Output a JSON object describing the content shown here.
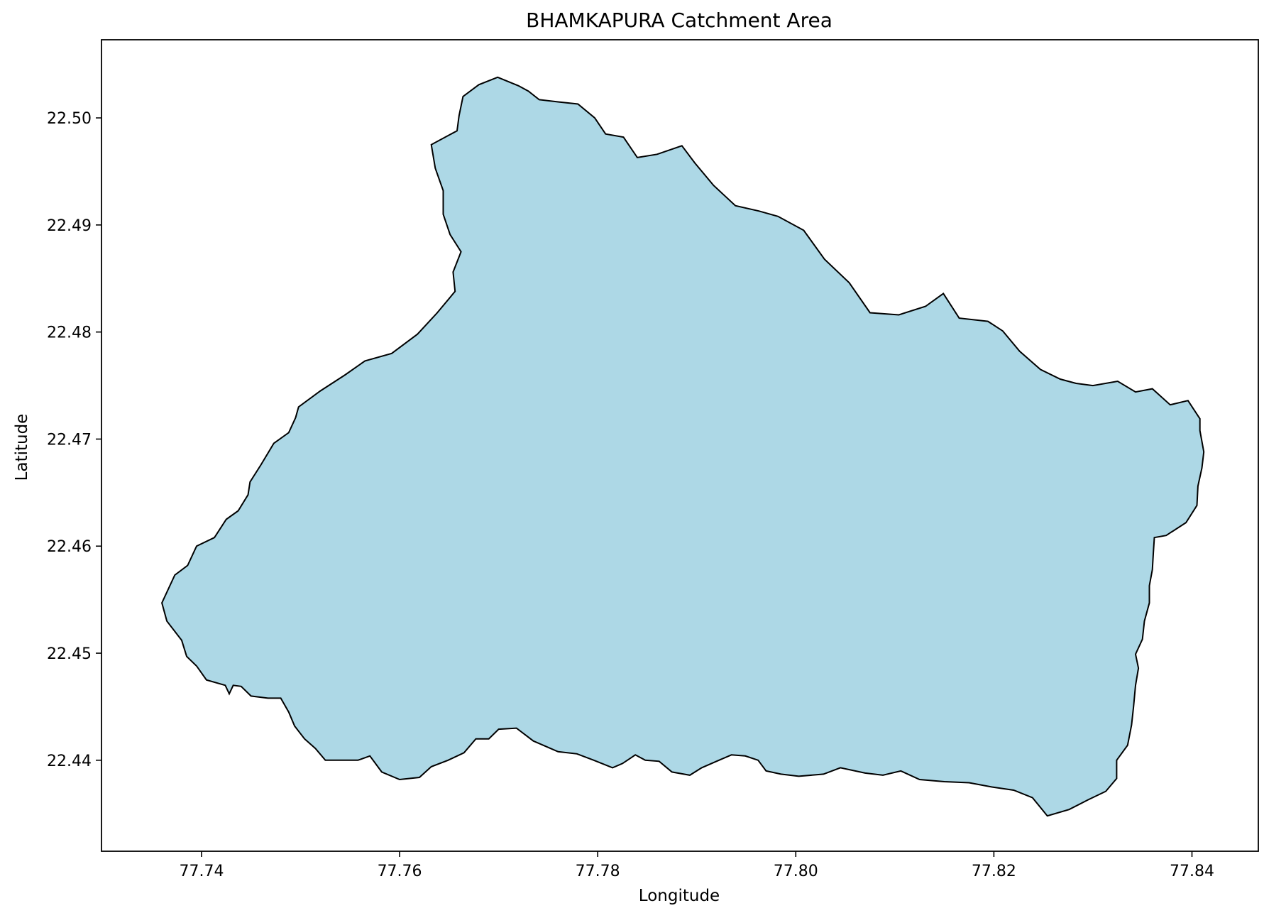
{
  "chart_data": {
    "type": "map",
    "title": "BHAMKAPURA Catchment Area",
    "xlabel": "Longitude",
    "ylabel": "Latitude",
    "xlim": [
      77.7299,
      77.8467
    ],
    "ylim": [
      22.4315,
      22.5073
    ],
    "xticks": [
      77.74,
      77.76,
      77.78,
      77.8,
      77.82,
      77.84
    ],
    "xtick_labels": [
      "77.74",
      "77.76",
      "77.78",
      "77.80",
      "77.82",
      "77.84"
    ],
    "yticks": [
      22.44,
      22.45,
      22.46,
      22.47,
      22.48,
      22.49,
      22.5
    ],
    "ytick_labels": [
      "22.44",
      "22.45",
      "22.46",
      "22.47",
      "22.48",
      "22.49",
      "22.50"
    ],
    "grid": false,
    "fill_color": "#add8e6",
    "edge_color": "#000000",
    "boundary": [
      [
        77.7699,
        22.5038
      ],
      [
        77.772,
        22.503
      ],
      [
        77.773,
        22.5025
      ],
      [
        77.7741,
        22.5017
      ],
      [
        77.776,
        22.5015
      ],
      [
        77.778,
        22.5013
      ],
      [
        77.7797,
        22.5
      ],
      [
        77.7808,
        22.4985
      ],
      [
        77.7826,
        22.4982
      ],
      [
        77.784,
        22.4963
      ],
      [
        77.786,
        22.4966
      ],
      [
        77.7885,
        22.4974
      ],
      [
        77.7898,
        22.4958
      ],
      [
        77.7917,
        22.4937
      ],
      [
        77.7939,
        22.4918
      ],
      [
        77.7963,
        22.4913
      ],
      [
        77.7982,
        22.4908
      ],
      [
        77.8008,
        22.4895
      ],
      [
        77.8029,
        22.4868
      ],
      [
        77.8054,
        22.4846
      ],
      [
        77.8075,
        22.4818
      ],
      [
        77.8104,
        22.4816
      ],
      [
        77.8131,
        22.4824
      ],
      [
        77.8149,
        22.4836
      ],
      [
        77.8165,
        22.4813
      ],
      [
        77.8194,
        22.481
      ],
      [
        77.8209,
        22.4801
      ],
      [
        77.8226,
        22.4782
      ],
      [
        77.8247,
        22.4765
      ],
      [
        77.8267,
        22.4756
      ],
      [
        77.8283,
        22.4752
      ],
      [
        77.83,
        22.475
      ],
      [
        77.8325,
        22.4754
      ],
      [
        77.8343,
        22.4744
      ],
      [
        77.836,
        22.4747
      ],
      [
        77.8378,
        22.4732
      ],
      [
        77.8396,
        22.4736
      ],
      [
        77.8408,
        22.4719
      ],
      [
        77.8408,
        22.4708
      ],
      [
        77.8412,
        22.4688
      ],
      [
        77.841,
        22.4673
      ],
      [
        77.8406,
        22.4656
      ],
      [
        77.8405,
        22.4638
      ],
      [
        77.8394,
        22.4622
      ],
      [
        77.8374,
        22.461
      ],
      [
        77.8362,
        22.4608
      ],
      [
        77.8361,
        22.4594
      ],
      [
        77.836,
        22.4578
      ],
      [
        77.8357,
        22.4563
      ],
      [
        77.8357,
        22.4547
      ],
      [
        77.8352,
        22.453
      ],
      [
        77.835,
        22.4513
      ],
      [
        77.8343,
        22.4499
      ],
      [
        77.8346,
        22.4486
      ],
      [
        77.8343,
        22.447
      ],
      [
        77.8341,
        22.445
      ],
      [
        77.8339,
        22.4433
      ],
      [
        77.8335,
        22.4414
      ],
      [
        77.8324,
        22.44
      ],
      [
        77.8324,
        22.4383
      ],
      [
        77.8313,
        22.4371
      ],
      [
        77.8295,
        22.4363
      ],
      [
        77.8276,
        22.4354
      ],
      [
        77.8254,
        22.4348
      ],
      [
        77.8239,
        22.4365
      ],
      [
        77.822,
        22.4372
      ],
      [
        77.8198,
        22.4375
      ],
      [
        77.8175,
        22.4379
      ],
      [
        77.815,
        22.438
      ],
      [
        77.8125,
        22.4382
      ],
      [
        77.8106,
        22.439
      ],
      [
        77.8088,
        22.4386
      ],
      [
        77.807,
        22.4388
      ],
      [
        77.8045,
        22.4393
      ],
      [
        77.8028,
        22.4387
      ],
      [
        77.8003,
        22.4385
      ],
      [
        77.7985,
        22.4387
      ],
      [
        77.797,
        22.439
      ],
      [
        77.7962,
        22.44
      ],
      [
        77.7949,
        22.4404
      ],
      [
        77.7935,
        22.4405
      ],
      [
        77.792,
        22.4399
      ],
      [
        77.7905,
        22.4393
      ],
      [
        77.7893,
        22.4386
      ],
      [
        77.7875,
        22.4389
      ],
      [
        77.7862,
        22.4399
      ],
      [
        77.7848,
        22.44
      ],
      [
        77.7838,
        22.4405
      ],
      [
        77.7825,
        22.4397
      ],
      [
        77.7815,
        22.4393
      ],
      [
        77.7796,
        22.44
      ],
      [
        77.7779,
        22.4406
      ],
      [
        77.776,
        22.4408
      ],
      [
        77.7735,
        22.4418
      ],
      [
        77.7718,
        22.443
      ],
      [
        77.77,
        22.4429
      ],
      [
        77.769,
        22.442
      ],
      [
        77.7677,
        22.442
      ],
      [
        77.7665,
        22.4407
      ],
      [
        77.7649,
        22.44
      ],
      [
        77.7632,
        22.4394
      ],
      [
        77.762,
        22.4384
      ],
      [
        77.76,
        22.4382
      ],
      [
        77.7582,
        22.4389
      ],
      [
        77.757,
        22.4404
      ],
      [
        77.7558,
        22.44
      ],
      [
        77.754,
        22.44
      ],
      [
        77.7525,
        22.44
      ],
      [
        77.7515,
        22.4411
      ],
      [
        77.7504,
        22.442
      ],
      [
        77.7494,
        22.4432
      ],
      [
        77.7488,
        22.4445
      ],
      [
        77.748,
        22.4458
      ],
      [
        77.7467,
        22.4458
      ],
      [
        77.745,
        22.446
      ],
      [
        77.744,
        22.4469
      ],
      [
        77.7432,
        22.447
      ],
      [
        77.7428,
        22.4462
      ],
      [
        77.7424,
        22.447
      ],
      [
        77.7405,
        22.4475
      ],
      [
        77.7395,
        22.4488
      ],
      [
        77.7385,
        22.4497
      ],
      [
        77.738,
        22.4512
      ],
      [
        77.7365,
        22.453
      ],
      [
        77.736,
        22.4547
      ],
      [
        77.7373,
        22.4573
      ],
      [
        77.7386,
        22.4582
      ],
      [
        77.7395,
        22.46
      ],
      [
        77.7413,
        22.4608
      ],
      [
        77.7425,
        22.4625
      ],
      [
        77.7437,
        22.4633
      ],
      [
        77.7447,
        22.4648
      ],
      [
        77.7449,
        22.466
      ],
      [
        77.746,
        22.4676
      ],
      [
        77.7473,
        22.4696
      ],
      [
        77.7488,
        22.4706
      ],
      [
        77.7495,
        22.472
      ],
      [
        77.7498,
        22.473
      ],
      [
        77.752,
        22.4745
      ],
      [
        77.7545,
        22.476
      ],
      [
        77.7565,
        22.4773
      ],
      [
        77.7592,
        22.478
      ],
      [
        77.7618,
        22.4798
      ],
      [
        77.7638,
        22.4818
      ],
      [
        77.7656,
        22.4838
      ],
      [
        77.7654,
        22.4856
      ],
      [
        77.7662,
        22.4875
      ],
      [
        77.7651,
        22.4891
      ],
      [
        77.7644,
        22.491
      ],
      [
        77.7644,
        22.4932
      ],
      [
        77.7636,
        22.4953
      ],
      [
        77.7632,
        22.4975
      ],
      [
        77.7658,
        22.4988
      ],
      [
        77.766,
        22.5002
      ],
      [
        77.7664,
        22.502
      ],
      [
        77.768,
        22.5031
      ],
      [
        77.7699,
        22.5038
      ]
    ]
  }
}
